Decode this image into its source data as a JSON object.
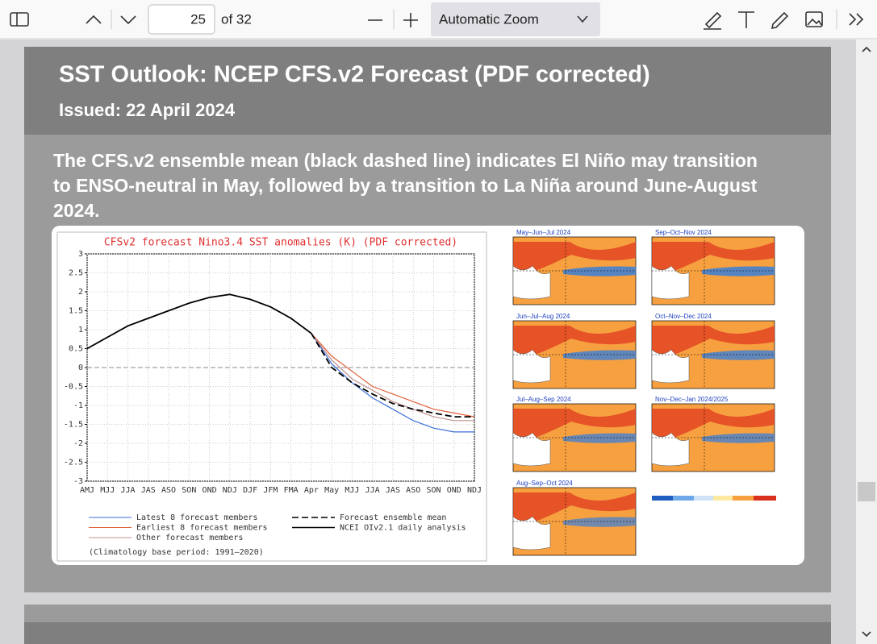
{
  "toolbar": {
    "page": "25",
    "page_count": "of 32",
    "zoom": "Automatic Zoom"
  },
  "slide": {
    "title": "SST Outlook: NCEP CFS.v2 Forecast (PDF corrected)",
    "issued": "Issued: 22 April 2024",
    "text_lines": [
      "The CFS.v2 ensemble mean (black dashed line) indicates El Niño may transition",
      "to ENSO-neutral in May, followed by a transition to La Niña around June-August",
      "2024."
    ]
  },
  "chart_data": {
    "type": "line",
    "title": "CFSv2 forecast Nino3.4 SST anomalies (K) (PDF corrected)",
    "categories": [
      "AMJ",
      "MJJ",
      "JJA",
      "JAS",
      "ASO",
      "SON",
      "OND",
      "NDJ",
      "DJF",
      "JFM",
      "FMA",
      "Apr",
      "May",
      "MJJ",
      "JJA",
      "JAS",
      "ASO",
      "SON",
      "OND",
      "NDJ"
    ],
    "ylim": [
      -3,
      3
    ],
    "yticks": [
      -3,
      -2.5,
      -2,
      -1.5,
      -1,
      -0.5,
      0,
      0.5,
      1,
      1.5,
      2,
      2.5,
      3
    ],
    "grid": true,
    "series": [
      {
        "name": "Latest 8 forecast members",
        "color": "#3a6fd8",
        "values": [
          null,
          null,
          null,
          null,
          null,
          null,
          null,
          null,
          null,
          null,
          null,
          0.9,
          0.1,
          -0.4,
          -0.8,
          -1.1,
          -1.4,
          -1.6,
          -1.7,
          -1.7
        ]
      },
      {
        "name": "Earliest 8 forecast members",
        "color": "#e0603a",
        "values": [
          null,
          null,
          null,
          null,
          null,
          null,
          null,
          null,
          null,
          null,
          null,
          0.9,
          0.3,
          -0.1,
          -0.5,
          -0.7,
          -0.9,
          -1.1,
          -1.2,
          -1.3
        ]
      },
      {
        "name": "Other forecast members",
        "color": "#c09090",
        "values": [
          null,
          null,
          null,
          null,
          null,
          null,
          null,
          null,
          null,
          null,
          null,
          0.9,
          0.2,
          -0.3,
          -0.6,
          -0.9,
          -1.1,
          -1.3,
          -1.4,
          -1.4
        ]
      },
      {
        "name": "Forecast ensemble mean",
        "color": "#000000",
        "dash": true,
        "values": [
          null,
          null,
          null,
          null,
          null,
          null,
          null,
          null,
          null,
          null,
          null,
          0.9,
          0.0,
          -0.4,
          -0.7,
          -0.95,
          -1.1,
          -1.2,
          -1.3,
          -1.3
        ]
      },
      {
        "name": "NCEI OIv2.1 daily analysis",
        "color": "#000000",
        "values": [
          0.5,
          0.8,
          1.1,
          1.3,
          1.5,
          1.7,
          1.85,
          1.93,
          1.8,
          1.6,
          1.3,
          0.9,
          null,
          null,
          null,
          null,
          null,
          null,
          null,
          null
        ]
      }
    ],
    "note": "(Climatology base period: 1991–2020)"
  },
  "maps": [
    {
      "title": "May–Jun–Jul 2024"
    },
    {
      "title": "Jun–Jul–Aug 2024"
    },
    {
      "title": "Jul–Aug–Sep 2024"
    },
    {
      "title": "Aug–Sep–Oct 2024"
    },
    {
      "title": "Sep–Oct–Nov 2024"
    },
    {
      "title": "Oct–Nov–Dec 2024"
    },
    {
      "title": "Nov–Dec–Jan 2024/2025"
    }
  ]
}
